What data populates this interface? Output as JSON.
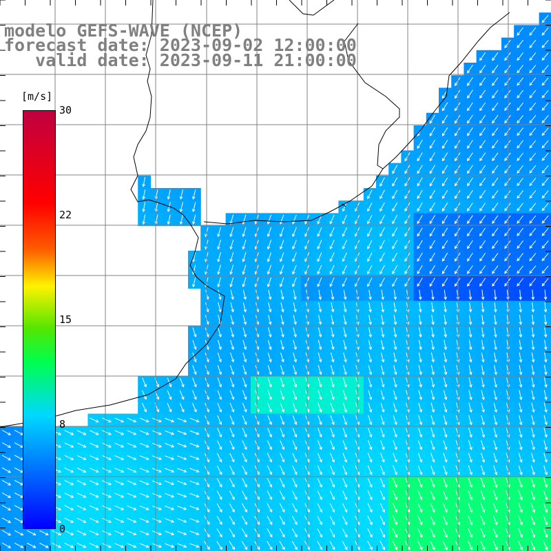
{
  "title": {
    "model": "modelo GEFS-WAVE (NCEP)",
    "forecast": "forecast date: 2023-09-02 12:00:00",
    "valid": "   valid date: 2023-09-11 21:00:00"
  },
  "colorbar": {
    "unit": "[m/s]",
    "ticks": [
      "30",
      "22",
      "15",
      "8",
      "0"
    ],
    "colors": [
      "#0000ff",
      "#00d8ff",
      "#00ff4d",
      "#fff200",
      "#ff0000",
      "#c00040"
    ]
  },
  "map_layers": [
    "land",
    "coastline",
    "graticule",
    "wind-speed-field",
    "wind-vectors"
  ],
  "colors": {
    "land": "#ffffff",
    "coast": "#000000",
    "grid": "#808080",
    "arrow": "#ffffff"
  }
}
